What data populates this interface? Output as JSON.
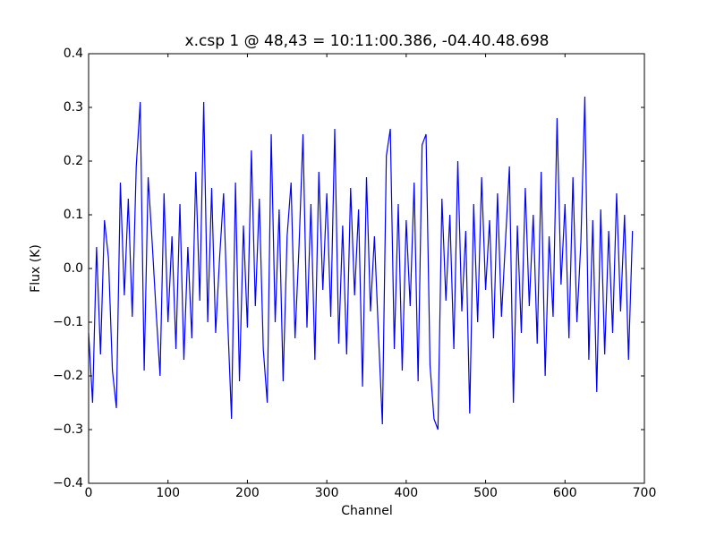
{
  "chart_data": {
    "type": "line",
    "title": "x.csp 1 @ 48,43 = 10:11:00.386, -04.40.48.698",
    "xlabel": "Channel",
    "ylabel": "Flux (K)",
    "color": "#0000ff",
    "x": [
      0,
      5,
      10,
      15,
      20,
      25,
      30,
      35,
      40,
      45,
      50,
      55,
      60,
      65,
      70,
      75,
      80,
      85,
      90,
      95,
      100,
      105,
      110,
      115,
      120,
      125,
      130,
      135,
      140,
      145,
      150,
      155,
      160,
      165,
      170,
      175,
      180,
      185,
      190,
      195,
      200,
      205,
      210,
      215,
      220,
      225,
      230,
      235,
      240,
      245,
      250,
      255,
      260,
      265,
      270,
      275,
      280,
      285,
      290,
      295,
      300,
      305,
      310,
      315,
      320,
      325,
      330,
      335,
      340,
      345,
      350,
      355,
      360,
      365,
      370,
      375,
      380,
      385,
      390,
      395,
      400,
      405,
      410,
      415,
      420,
      425,
      430,
      435,
      440,
      445,
      450,
      455,
      460,
      465,
      470,
      475,
      480,
      485,
      490,
      495,
      500,
      505,
      510,
      515,
      520,
      525,
      530,
      535,
      540,
      545,
      550,
      555,
      560,
      565,
      570,
      575,
      580,
      585,
      590,
      595,
      600,
      605,
      610,
      615,
      620,
      625,
      630,
      635,
      640,
      645,
      650,
      655,
      660,
      665,
      670,
      675,
      680,
      685
    ],
    "values": [
      -0.12,
      -0.25,
      0.04,
      -0.16,
      0.09,
      0.02,
      -0.19,
      -0.26,
      0.16,
      -0.05,
      0.13,
      -0.09,
      0.19,
      0.31,
      -0.19,
      0.17,
      0.05,
      -0.08,
      -0.2,
      0.14,
      -0.1,
      0.06,
      -0.15,
      0.12,
      -0.17,
      0.04,
      -0.13,
      0.18,
      -0.06,
      0.31,
      -0.1,
      0.15,
      -0.12,
      0.02,
      0.14,
      -0.09,
      -0.28,
      0.16,
      -0.21,
      0.08,
      -0.11,
      0.22,
      -0.07,
      0.13,
      -0.15,
      -0.25,
      0.25,
      -0.1,
      0.11,
      -0.21,
      0.06,
      0.16,
      -0.13,
      0.04,
      0.25,
      -0.11,
      0.12,
      -0.17,
      0.18,
      -0.04,
      0.14,
      -0.09,
      0.26,
      -0.14,
      0.08,
      -0.16,
      0.15,
      -0.05,
      0.11,
      -0.22,
      0.17,
      -0.08,
      0.06,
      -0.12,
      -0.29,
      0.21,
      0.26,
      -0.15,
      0.12,
      -0.19,
      0.09,
      -0.07,
      0.16,
      -0.21,
      0.23,
      0.25,
      -0.18,
      -0.28,
      -0.3,
      0.13,
      -0.06,
      0.1,
      -0.15,
      0.2,
      -0.08,
      0.07,
      -0.27,
      0.12,
      -0.1,
      0.17,
      -0.04,
      0.09,
      -0.13,
      0.14,
      -0.09,
      0.05,
      0.19,
      -0.25,
      0.08,
      -0.12,
      0.15,
      -0.07,
      0.1,
      -0.14,
      0.18,
      -0.2,
      0.06,
      -0.09,
      0.28,
      -0.03,
      0.12,
      -0.13,
      0.17,
      -0.1,
      0.05,
      0.32,
      -0.17,
      0.09,
      -0.23,
      0.11,
      -0.16,
      0.07,
      -0.12,
      0.14,
      -0.08,
      0.1,
      -0.17,
      0.07
    ],
    "xlim": [
      0,
      700
    ],
    "xticks": [
      0,
      100,
      200,
      300,
      400,
      500,
      600,
      700
    ],
    "ylim": [
      -0.4,
      0.4
    ],
    "yticks": [
      {
        "value": -0.4,
        "label": "−0.4"
      },
      {
        "value": -0.3,
        "label": "−0.3"
      },
      {
        "value": -0.2,
        "label": "−0.2"
      },
      {
        "value": -0.1,
        "label": "−0.1"
      },
      {
        "value": 0,
        "label": "0.0"
      },
      0.1,
      0.2,
      0.3,
      0.4
    ]
  }
}
